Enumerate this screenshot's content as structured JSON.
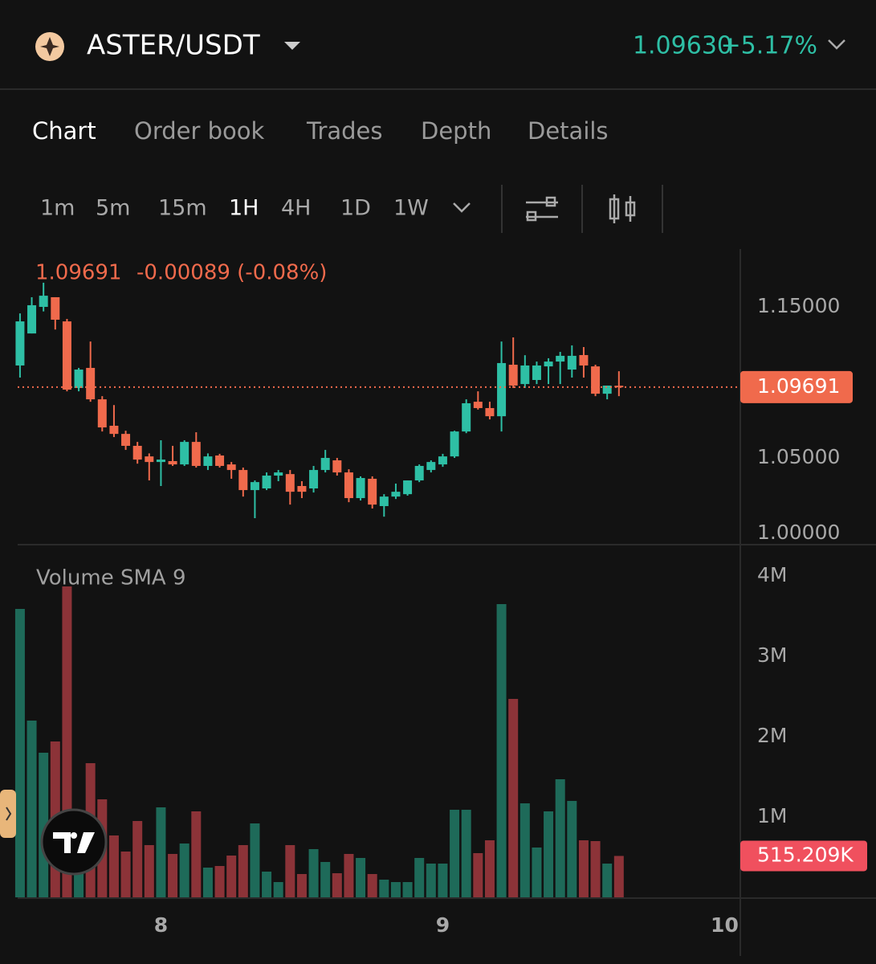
{
  "header": {
    "pair": "ASTER/USDT",
    "price": "1.09630",
    "change": "+5.17%"
  },
  "tabs": [
    "Chart",
    "Order book",
    "Trades",
    "Depth",
    "Details"
  ],
  "intervals": [
    "1m",
    "5m",
    "15m",
    "1H",
    "4H",
    "1D",
    "1W"
  ],
  "chart_data": [
    {
      "type": "candlestick",
      "change_label": "-0.00089 (-0.08%)",
      "up_color": "#2ebfa5",
      "down_color": "#f06a4c",
      "x": [
        12,
        13,
        14,
        15,
        16,
        17,
        18,
        19,
        20,
        21,
        22,
        23,
        24,
        25,
        26,
        27,
        28,
        29,
        30,
        31,
        32,
        33,
        34,
        35,
        36,
        37,
        38,
        39,
        40,
        41,
        42,
        43,
        44,
        45,
        46,
        47,
        48,
        49,
        50,
        51,
        52,
        53,
        54,
        55,
        56,
        57,
        58,
        59,
        60,
        61,
        62,
        63
      ],
      "open": [
        1.1112,
        1.1324,
        1.15,
        1.1564,
        1.1404,
        1.0963,
        1.1096,
        1.0888,
        1.0713,
        1.0659,
        1.058,
        1.051,
        1.0473,
        1.0479,
        1.0457,
        1.0606,
        1.0447,
        1.0516,
        1.0457,
        1.042,
        1.0287,
        1.0298,
        1.0383,
        1.0393,
        1.0314,
        1.0298,
        1.042,
        1.0484,
        1.0404,
        1.0234,
        1.0362,
        1.0181,
        1.0244,
        1.026,
        1.0351,
        1.042,
        1.0457,
        1.051,
        1.0675,
        1.0872,
        1.083,
        1.0776,
        1.1117,
        1.0989,
        1.1016,
        1.1106,
        1.1138,
        1.1085,
        1.1181,
        1.1106,
        1.0925,
        1.0978
      ],
      "high": [
        1.1457,
        1.1564,
        1.166,
        1.1564,
        1.142,
        1.1096,
        1.1271,
        1.0909,
        1.085,
        1.068,
        1.0606,
        1.053,
        1.0617,
        1.058,
        1.0617,
        1.067,
        1.053,
        1.0527,
        1.0473,
        1.0436,
        1.0351,
        1.0404,
        1.042,
        1.042,
        1.0346,
        1.0447,
        1.0553,
        1.05,
        1.0425,
        1.0378,
        1.0378,
        1.026,
        1.033,
        1.0351,
        1.0457,
        1.0484,
        1.0527,
        1.068,
        1.0888,
        1.0941,
        1.0872,
        1.1271,
        1.1298,
        1.118,
        1.1138,
        1.116,
        1.1202,
        1.1245,
        1.1234,
        1.1117,
        1.0979,
        1.1074
      ],
      "low": [
        1.1032,
        1.1324,
        1.147,
        1.135,
        1.0941,
        1.0941,
        1.0872,
        1.0675,
        1.0638,
        1.0553,
        1.0462,
        1.0351,
        1.0314,
        1.0447,
        1.0447,
        1.0436,
        1.042,
        1.0436,
        1.0362,
        1.0244,
        1.0101,
        1.0287,
        1.0346,
        1.0191,
        1.0234,
        1.0271,
        1.0404,
        1.0383,
        1.0207,
        1.0218,
        1.0165,
        1.0111,
        1.0228,
        1.025,
        1.034,
        1.0404,
        1.0441,
        1.05,
        1.0664,
        1.082,
        1.0755,
        1.0675,
        1.0963,
        1.0963,
        1.0989,
        1.0989,
        1.0989,
        1.1032,
        1.1032,
        1.0909,
        1.0888,
        1.0909
      ],
      "close": [
        1.1404,
        1.1511,
        1.1574,
        1.1415,
        1.0952,
        1.1085,
        1.0888,
        1.0702,
        1.0659,
        1.058,
        1.0489,
        1.0473,
        1.0489,
        1.0457,
        1.0606,
        1.0447,
        1.051,
        1.0447,
        1.042,
        1.0287,
        1.034,
        1.0383,
        1.0404,
        1.0276,
        1.0276,
        1.042,
        1.05,
        1.0404,
        1.0234,
        1.0367,
        1.0191,
        1.0244,
        1.0276,
        1.0351,
        1.0447,
        1.0473,
        1.051,
        1.0675,
        1.0862,
        1.083,
        1.0776,
        1.1128,
        1.0979,
        1.1112,
        1.1112,
        1.1138,
        1.1176,
        1.1176,
        1.1112,
        1.0925,
        1.0979,
        1.09691
      ],
      "xlim": [
        11.8,
        73.2
      ],
      "ylim": [
        0.9931,
        1.1883
      ],
      "yticks": [
        {
          "value": 1.15,
          "label": "1.15000"
        },
        {
          "value": 1.05,
          "label": "1.05000"
        },
        {
          "value": 1,
          "label": "1.00000"
        }
      ]
    },
    {
      "type": "bar",
      "title": "Volume SMA 9",
      "up_color": "#1e6a59",
      "down_color": "#8c3338",
      "x": [
        12,
        13,
        14,
        15,
        16,
        17,
        18,
        19,
        20,
        21,
        22,
        23,
        24,
        25,
        26,
        27,
        28,
        29,
        30,
        31,
        32,
        33,
        34,
        35,
        36,
        37,
        38,
        39,
        40,
        41,
        42,
        43,
        44,
        45,
        46,
        47,
        48,
        49,
        50,
        51,
        52,
        53,
        54,
        55,
        56,
        57,
        58,
        59,
        60,
        61,
        62,
        63
      ],
      "values": [
        3590000,
        2200000,
        1800000,
        1940000,
        3870000,
        800000,
        1670000,
        1220000,
        770000,
        570000,
        950000,
        650000,
        1120000,
        540000,
        670000,
        1070000,
        370000,
        390000,
        520000,
        650000,
        920000,
        320000,
        190000,
        650000,
        290000,
        600000,
        440000,
        300000,
        540000,
        490000,
        290000,
        220000,
        190000,
        190000,
        490000,
        420000,
        420000,
        1090000,
        1090000,
        550000,
        710000,
        3650000,
        2470000,
        1170000,
        620000,
        1070000,
        1470000,
        1200000,
        710000,
        700000,
        420000,
        515209
      ],
      "value_labels": [
        null,
        null,
        null,
        null,
        null,
        null,
        null,
        null,
        null,
        null,
        null,
        null,
        null,
        null,
        null,
        null,
        null,
        null,
        null,
        null,
        null,
        null,
        null,
        null,
        null,
        null,
        null,
        null,
        null,
        null,
        null,
        null,
        null,
        null,
        null,
        null,
        null,
        null,
        null,
        null,
        null,
        null,
        null,
        null,
        null,
        null,
        null,
        null,
        null,
        null,
        null,
        "515.209K"
      ],
      "xlim": [
        11.8,
        73.2
      ],
      "ylim": [
        0,
        4370000
      ],
      "yticks": [
        {
          "value": 1000000,
          "label": "1M"
        },
        {
          "value": 2000000,
          "label": "2M"
        },
        {
          "value": 3000000,
          "label": "3M"
        },
        {
          "value": 4000000,
          "label": "4M"
        }
      ],
      "xticks": [
        {
          "value": 24,
          "label": "8"
        },
        {
          "value": 48,
          "label": "9"
        },
        {
          "value": 72,
          "label": "10"
        }
      ]
    }
  ]
}
